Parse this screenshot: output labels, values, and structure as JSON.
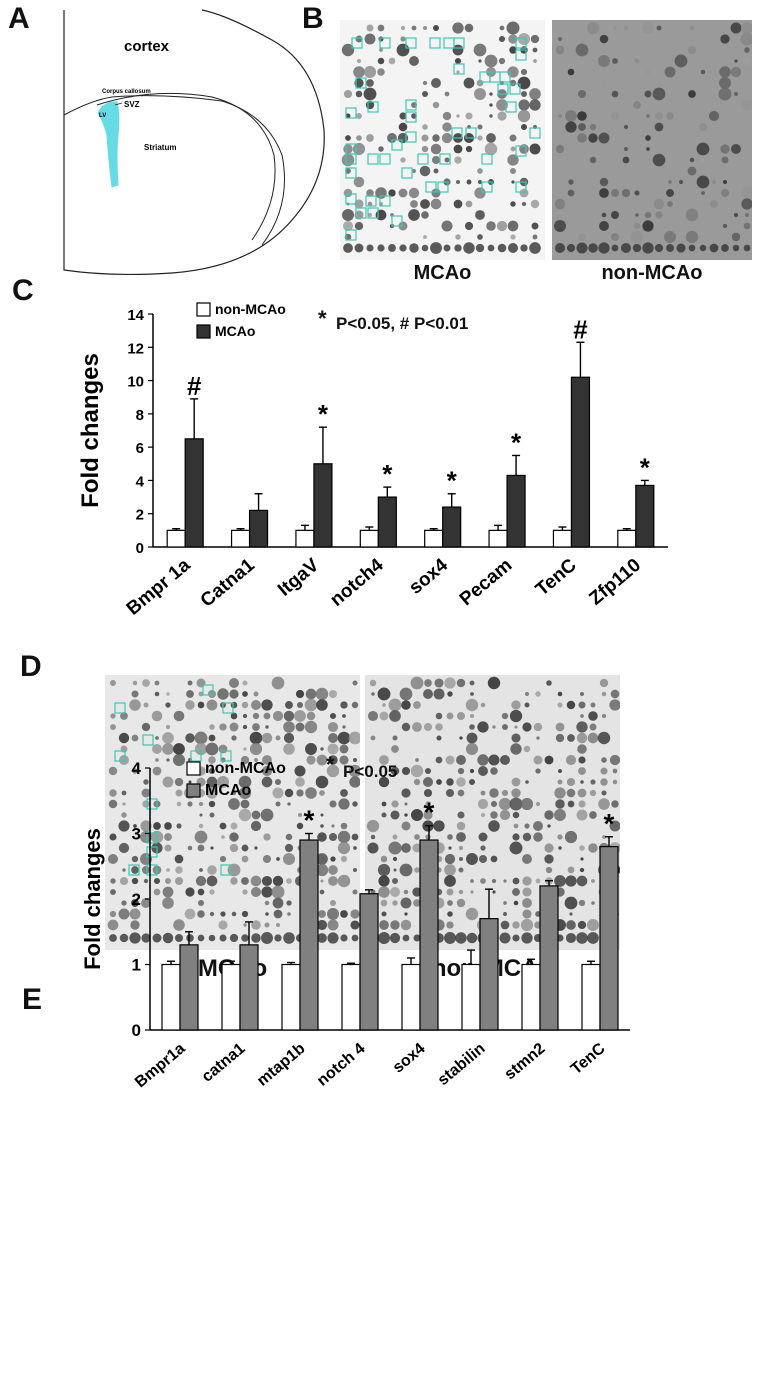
{
  "panels": {
    "a": {
      "letter": "A",
      "regions": {
        "cortex": "cortex",
        "corpus": "Corpus callosum",
        "svz": "SVZ",
        "lv": "LV",
        "striatum": "Striatum"
      }
    },
    "b": {
      "letter": "B",
      "left_label": "MCAo",
      "right_label": "non-MCAo"
    },
    "c": {
      "letter": "C",
      "significance_note": "P<0.05, # P<0.01",
      "star": "*"
    },
    "d": {
      "letter": "D",
      "left_label": "MCAo",
      "right_label": "non-MCAo"
    },
    "e": {
      "letter": "E",
      "significance_note": "P<0.05",
      "star": "*"
    }
  },
  "colors": {
    "non_mcao_fill": "#ffffff",
    "mcao_fill_c": "#333333",
    "mcao_fill_e": "#808080",
    "highlight": "#3cc8b4",
    "ventricle": "#66dbe6"
  },
  "chart_data": [
    {
      "type": "bar",
      "ylabel": "Fold changes",
      "ylim": [
        0,
        14
      ],
      "yticks": [
        0,
        2,
        4,
        6,
        8,
        10,
        12,
        14
      ],
      "categories": [
        "Bmpr 1a",
        "Catna1",
        "ItgaV",
        "notch4",
        "sox4",
        "Pecam",
        "TenC",
        "Zfp110"
      ],
      "series": [
        {
          "name": "non-MCAo",
          "values": [
            1,
            1,
            1,
            1,
            1,
            1,
            1,
            1
          ],
          "errors": [
            0.1,
            0.1,
            0.3,
            0.2,
            0.1,
            0.3,
            0.2,
            0.1
          ]
        },
        {
          "name": "MCAo",
          "values": [
            6.5,
            2.2,
            5.0,
            3.0,
            2.4,
            4.3,
            10.2,
            3.7
          ],
          "errors": [
            2.4,
            1.0,
            2.2,
            0.6,
            0.8,
            1.2,
            2.1,
            0.3
          ]
        }
      ],
      "markers": [
        "#",
        "",
        "*",
        "*",
        "*",
        "*",
        "#",
        "*"
      ],
      "legend": "top-left"
    },
    {
      "type": "bar",
      "ylabel": "Fold changes",
      "ylim": [
        0,
        4
      ],
      "yticks": [
        0,
        1,
        2,
        3,
        4
      ],
      "categories": [
        "Bmpr1a",
        "catna1",
        "mtap1b",
        "notch 4",
        "sox4",
        "stabilin",
        "stmn2",
        "TenC"
      ],
      "series": [
        {
          "name": "non-MCAo",
          "values": [
            1,
            1,
            1,
            1,
            1,
            1,
            1,
            1
          ],
          "errors": [
            0.05,
            0.05,
            0.03,
            0.02,
            0.1,
            0.22,
            0.08,
            0.05
          ]
        },
        {
          "name": "MCAo",
          "values": [
            1.3,
            1.3,
            2.9,
            2.08,
            2.9,
            1.7,
            2.2,
            2.8
          ],
          "errors": [
            0.2,
            0.35,
            0.1,
            0.06,
            0.22,
            0.45,
            0.08,
            0.15
          ]
        }
      ],
      "markers": [
        "",
        "",
        "*",
        "",
        "*",
        "",
        "",
        "*"
      ],
      "legend": "top-left"
    }
  ]
}
